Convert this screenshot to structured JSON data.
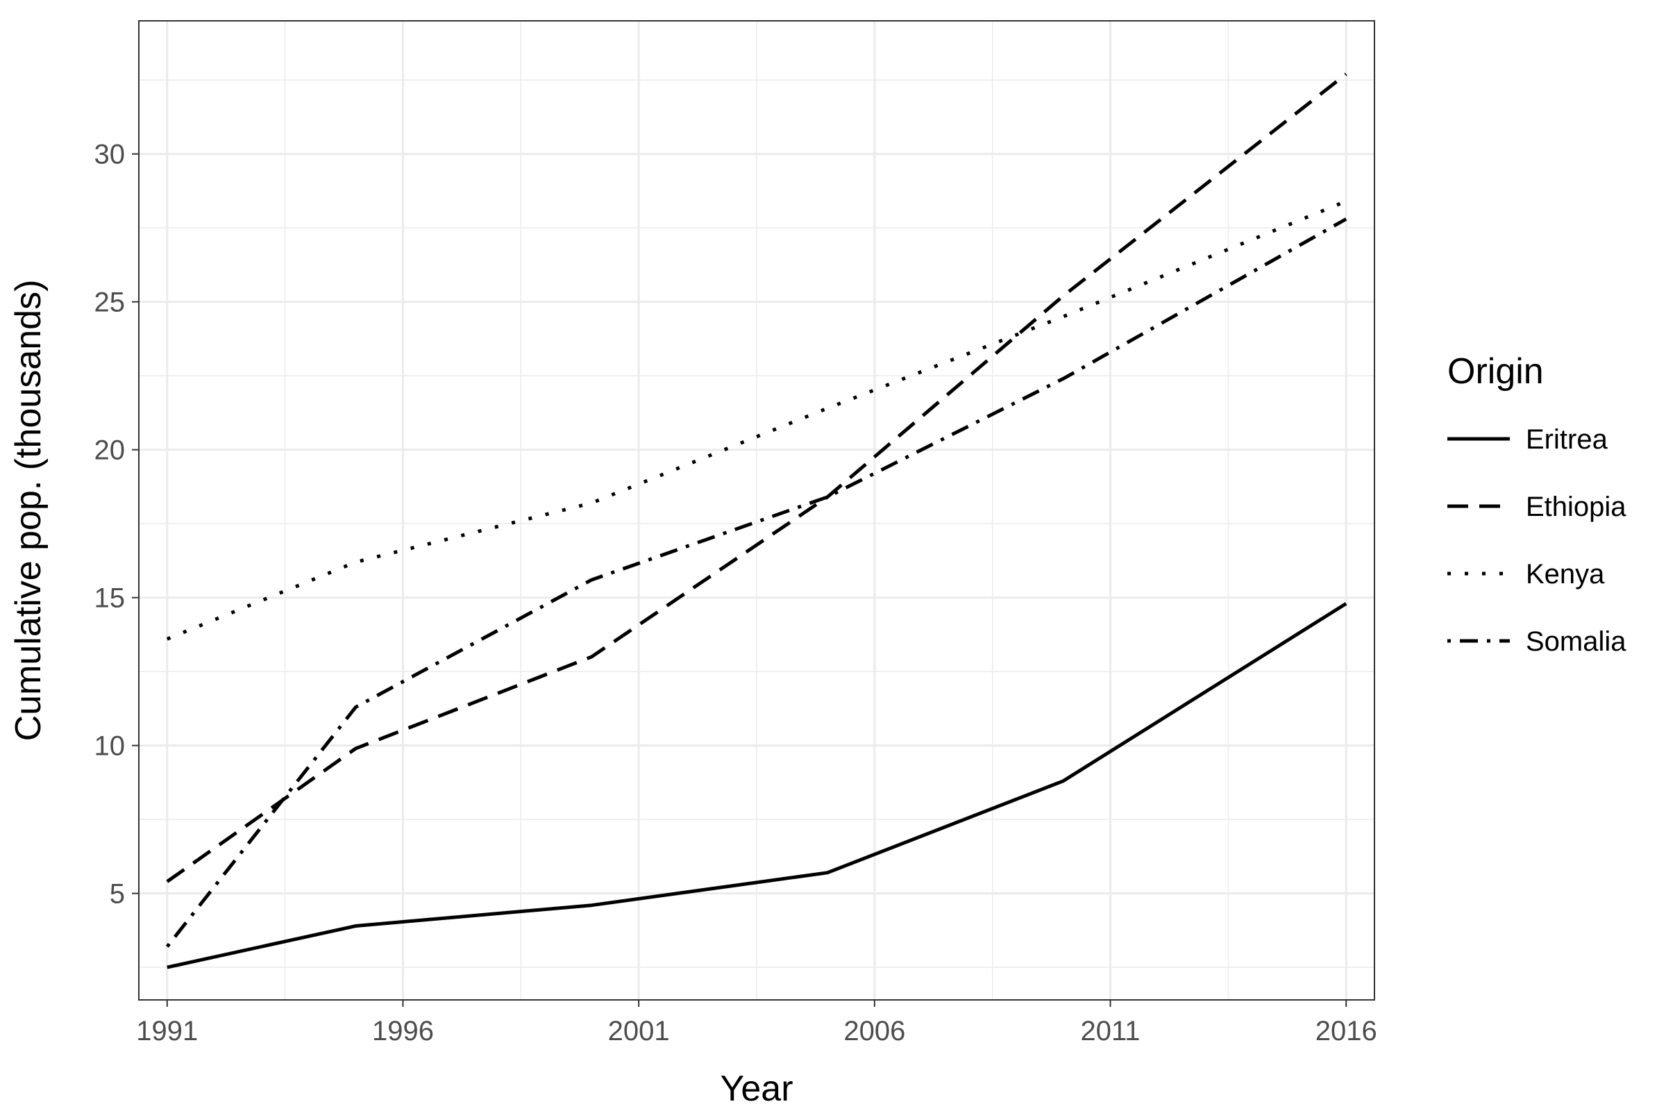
{
  "chart_data": {
    "type": "line",
    "xlabel": "Year",
    "ylabel": "Cumulative pop. (thousands)",
    "x": [
      1991,
      1995,
      2000,
      2005,
      2010,
      2016
    ],
    "xticks": [
      1991,
      1996,
      2001,
      2006,
      2011,
      2016
    ],
    "yticks": [
      5,
      10,
      15,
      20,
      25,
      30
    ],
    "xlim": [
      1990.4,
      2016.6
    ],
    "ylim": [
      1.4,
      34.5
    ],
    "grid": true,
    "legend": {
      "title": "Origin",
      "position": "right"
    },
    "series": [
      {
        "name": "Eritrea",
        "linestyle": "solid",
        "values": [
          2.5,
          3.9,
          4.6,
          5.7,
          8.8,
          14.8
        ]
      },
      {
        "name": "Ethiopia",
        "linestyle": "dashed",
        "values": [
          5.4,
          9.9,
          13.0,
          18.4,
          25.2,
          32.7
        ]
      },
      {
        "name": "Kenya",
        "linestyle": "dotted",
        "values": [
          13.6,
          16.2,
          18.2,
          21.4,
          24.5,
          28.4
        ]
      },
      {
        "name": "Somalia",
        "linestyle": "dotdash",
        "values": [
          3.2,
          11.3,
          15.6,
          18.4,
          22.4,
          27.8
        ]
      }
    ],
    "colors": {
      "line": "#000000",
      "grid": "#ebebeb",
      "panel_border": "#333333",
      "tick_text": "#4d4d4d"
    }
  }
}
